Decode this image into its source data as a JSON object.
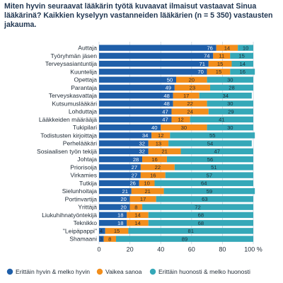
{
  "chart_data": {
    "type": "bar",
    "orientation": "horizontal",
    "stacked": true,
    "title": "Miten hyvin seuraavat lääkärin työtä kuvaavat ilmaisut vastaavat Sinua lääkärinä? Kaikkien kyselyyn vastanneiden lääkärien (n = 5 350) vastausten jakauma.",
    "categories": [
      "Auttaja",
      "Työryhmän jäsen",
      "Terveysasiantuntija",
      "Kuuntelija",
      "Opettaja",
      "Parantaja",
      "Terveyskasvattaja",
      "Kutsumuslääkäri",
      "Lohduttaja",
      "Lääkkeiden määrääjä",
      "Tukipilari",
      "Todistusten kirjoittaja",
      "Perhelääkäri",
      "Sosiaalisen työn tekijä",
      "Johtaja",
      "Priorisoija",
      "Virkamies",
      "Tutkija",
      "Sielunhoitaja",
      "Portinvartija",
      "Yrittäjä",
      "Liukuhihnatyöntekijä",
      "Teknikko",
      "\"Leipäpappi\"",
      "Shamaani"
    ],
    "series": [
      {
        "name": "Erittäin hyvin & melko hyvin",
        "color": "#1f5fa9",
        "values": [
          76,
          74,
          71,
          70,
          50,
          49,
          48,
          48,
          47,
          47,
          40,
          34,
          32,
          32,
          28,
          27,
          27,
          26,
          21,
          20,
          20,
          18,
          18,
          4,
          3
        ]
      },
      {
        "name": "Vaikea sanoa",
        "color": "#f28e1c",
        "values": [
          14,
          11,
          15,
          15,
          20,
          23,
          17,
          22,
          24,
          12,
          30,
          12,
          13,
          21,
          16,
          22,
          16,
          10,
          21,
          17,
          8,
          14,
          14,
          15,
          8
        ]
      },
      {
        "name": "Erittäin huonosti & melko huonosti",
        "color": "#35a8b8",
        "values": [
          10,
          15,
          14,
          16,
          30,
          28,
          34,
          30,
          29,
          41,
          30,
          55,
          54,
          47,
          56,
          51,
          57,
          64,
          59,
          63,
          72,
          68,
          68,
          81,
          89
        ]
      }
    ],
    "xlim": [
      0,
      100
    ],
    "xticks": [
      "0",
      "20",
      "40",
      "60",
      "80",
      "100 %"
    ],
    "grid": true,
    "legend_position": "bottom"
  }
}
